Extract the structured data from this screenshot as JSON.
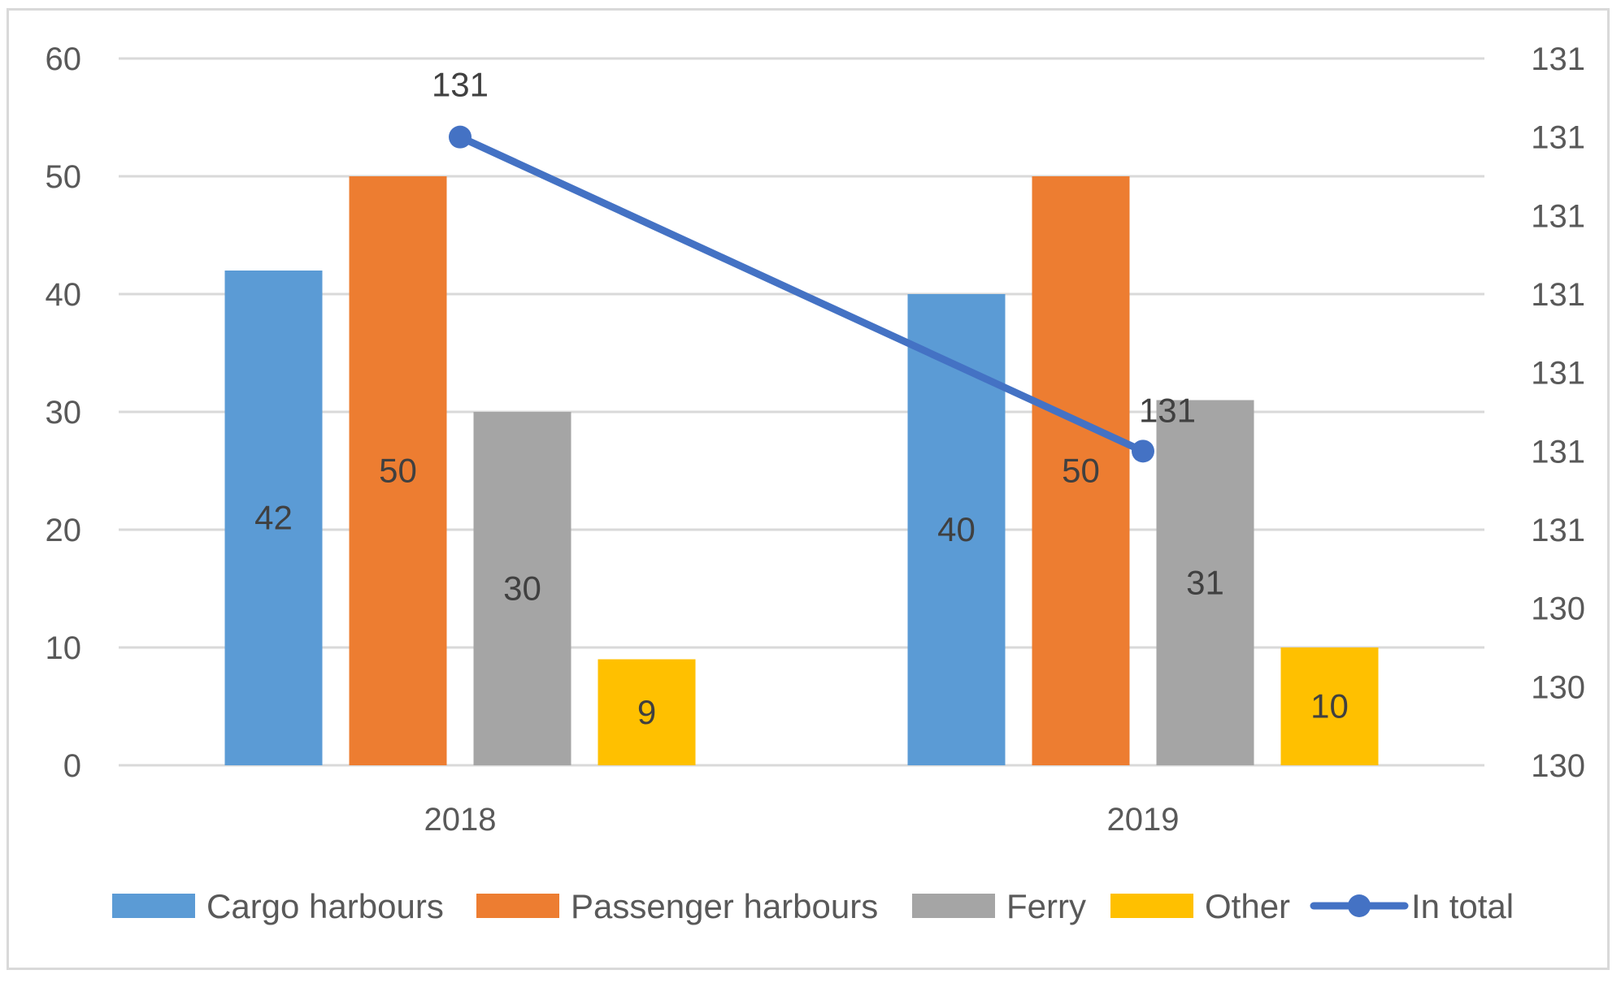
{
  "chart_data": {
    "type": "bar",
    "title": "",
    "xlabel": "",
    "ylabel": "",
    "categories": [
      "2018",
      "2019"
    ],
    "ylim": [
      0,
      60
    ],
    "yticks": [
      0,
      10,
      20,
      30,
      40,
      50,
      60
    ],
    "grid": true,
    "series": [
      {
        "name": "Cargo harbours",
        "color": "#5b9bd5",
        "values": [
          42,
          40
        ],
        "labels": [
          "42",
          "40"
        ]
      },
      {
        "name": "Passenger harbours",
        "color": "#ed7d31",
        "values": [
          50,
          50
        ],
        "labels": [
          "50",
          "50"
        ]
      },
      {
        "name": "Ferry",
        "color": "#a5a5a5",
        "values": [
          30,
          31
        ],
        "labels": [
          "30",
          "31"
        ]
      },
      {
        "name": "Other",
        "color": "#ffc000",
        "values": [
          9,
          10
        ],
        "labels": [
          "9",
          "10"
        ]
      }
    ],
    "line_series": {
      "name": "In total",
      "color": "#4472c4",
      "axis": "secondary",
      "values": [
        131.2,
        130.6
      ],
      "labels": [
        "131",
        "131"
      ]
    },
    "y2lim": [
      130,
      131.35
    ],
    "y2_tick_labels": [
      "130",
      "130",
      "130",
      "131",
      "131",
      "131",
      "131",
      "131",
      "131",
      "131"
    ],
    "legend_position": "bottom"
  }
}
